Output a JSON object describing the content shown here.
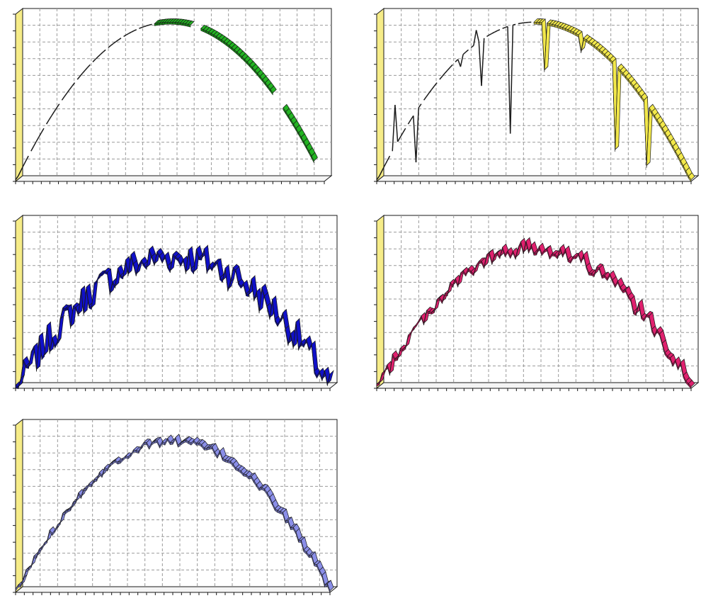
{
  "colors": {
    "wall_left": "#f6ec88",
    "plot_bg": "#ffffff",
    "frame": "#1a1a1a",
    "grid": "#9a9a9a"
  },
  "chart_data": [
    {
      "type": "area",
      "style": "3d-ribbon",
      "color": "#22b422",
      "grid": true,
      "xlim": [
        0,
        1
      ],
      "ylim": [
        0,
        1.05
      ],
      "peak": 1.0,
      "noise": 0.0,
      "gaps": [
        [
          0.0,
          0.45
        ],
        [
          0.565,
          0.6
        ],
        [
          0.83,
          0.86
        ]
      ],
      "thin_ranges": [
        [
          0.0,
          0.45
        ]
      ],
      "extent": [
        0.0,
        0.97
      ],
      "spikes": []
    },
    {
      "type": "area",
      "style": "3d-ribbon",
      "color": "#f2e84a",
      "grid": true,
      "xlim": [
        0,
        1
      ],
      "ylim": [
        0,
        1.05
      ],
      "peak": 1.0,
      "noise": 0.0,
      "gaps": [],
      "thin_ranges": [
        [
          0.0,
          0.5
        ]
      ],
      "extent": [
        0.0,
        1.0
      ],
      "spikes": [
        {
          "x": 0.06,
          "y": 0.48
        },
        {
          "x": 0.125,
          "y": 0.12
        },
        {
          "x": 0.265,
          "y": 0.72
        },
        {
          "x": 0.32,
          "y": 0.95
        },
        {
          "x": 0.335,
          "y": 0.6
        },
        {
          "x": 0.425,
          "y": 0.3
        },
        {
          "x": 0.53,
          "y": 0.7
        },
        {
          "x": 0.65,
          "y": 0.82
        },
        {
          "x": 0.76,
          "y": 0.2
        },
        {
          "x": 0.86,
          "y": 0.1
        }
      ]
    },
    {
      "type": "area",
      "style": "3d-ribbon",
      "color": "#1010c8",
      "grid": true,
      "xlim": [
        0,
        1
      ],
      "ylim": [
        0,
        1.15
      ],
      "peak": 0.9,
      "noise": 0.22,
      "seed": 7,
      "gaps": [],
      "thin_ranges": [],
      "extent": [
        0.0,
        1.0
      ],
      "spikes": []
    },
    {
      "type": "area",
      "style": "3d-ribbon",
      "color": "#e0206e",
      "grid": true,
      "xlim": [
        0,
        1
      ],
      "ylim": [
        0,
        1.05
      ],
      "peak": 0.88,
      "noise": 0.1,
      "seed": 19,
      "gaps": [],
      "thin_ranges": [],
      "extent": [
        0.0,
        1.0
      ],
      "spikes": []
    },
    {
      "type": "area",
      "style": "3d-ribbon",
      "color": "#8a8ee8",
      "grid": true,
      "xlim": [
        0,
        1
      ],
      "ylim": [
        0,
        1.05
      ],
      "peak": 0.95,
      "noise": 0.05,
      "seed": 31,
      "gaps": [],
      "thin_ranges": [],
      "extent": [
        0.0,
        1.0
      ],
      "spikes": []
    }
  ]
}
